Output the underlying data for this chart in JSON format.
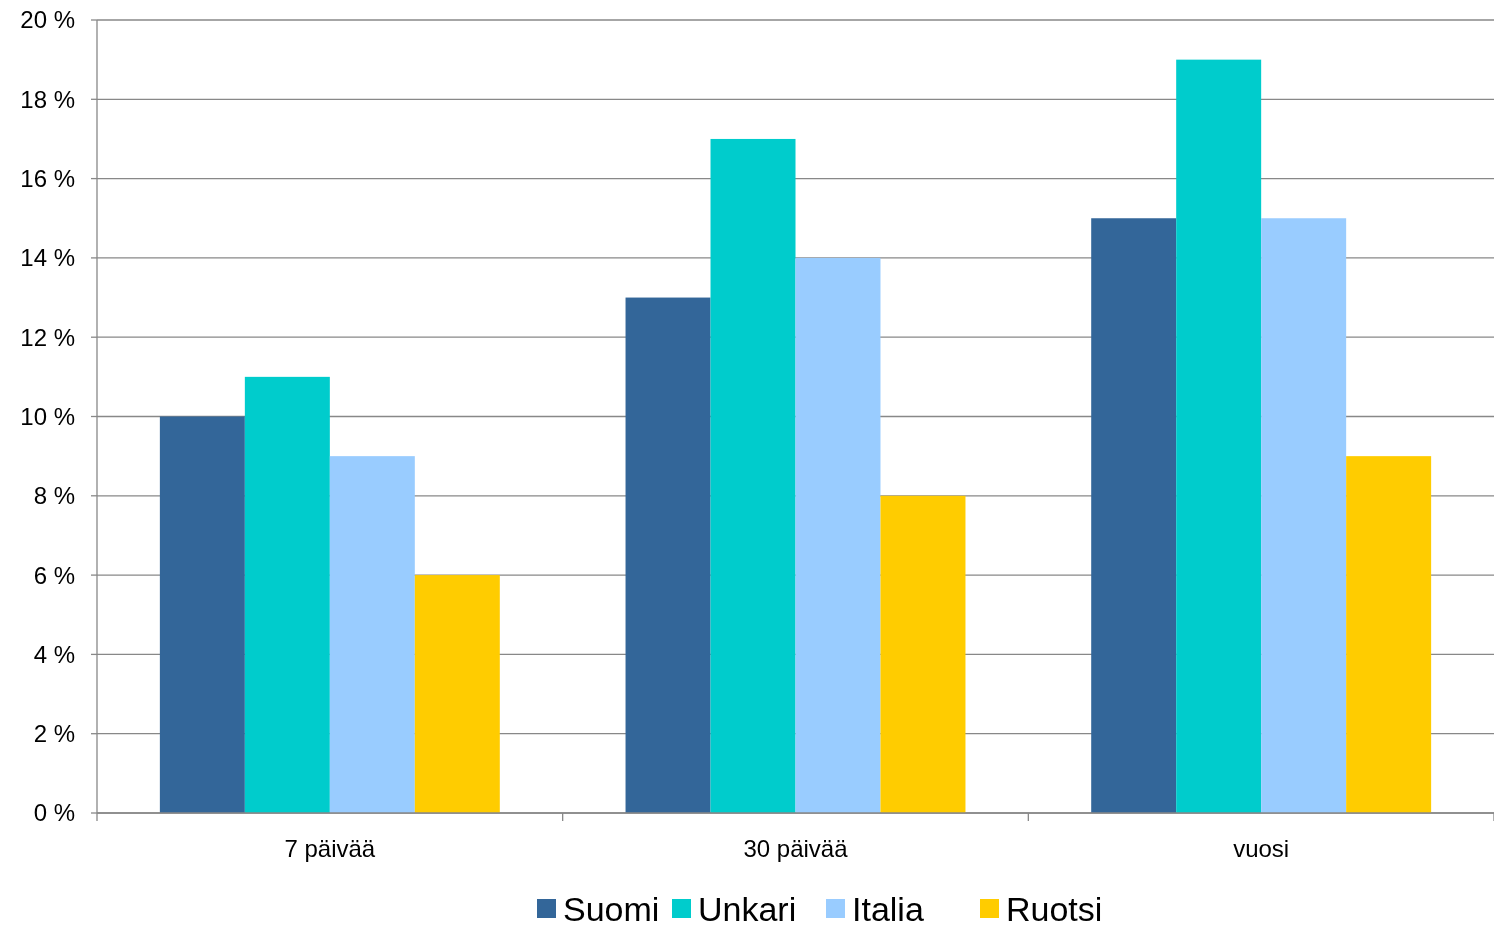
{
  "chart_data": {
    "type": "bar",
    "categories": [
      "7 päivää",
      "30 päivää",
      "vuosi"
    ],
    "series": [
      {
        "name": "Suomi",
        "color": "#336699",
        "values": [
          10,
          13,
          15
        ]
      },
      {
        "name": "Unkari",
        "color": "#00cccc",
        "values": [
          11,
          17,
          19
        ]
      },
      {
        "name": "Italia",
        "color": "#99ccff",
        "values": [
          9,
          14,
          15
        ]
      },
      {
        "name": "Ruotsi",
        "color": "#ffcc00",
        "values": [
          6,
          8,
          9
        ]
      }
    ],
    "ylim": [
      0,
      20
    ],
    "yticks": [
      {
        "value": 0,
        "label": "0 %"
      },
      {
        "value": 2,
        "label": "2 %"
      },
      {
        "value": 4,
        "label": "4 %"
      },
      {
        "value": 6,
        "label": "6 %"
      },
      {
        "value": 8,
        "label": "8 %"
      },
      {
        "value": 10,
        "label": "10 %"
      },
      {
        "value": 12,
        "label": "12 %"
      },
      {
        "value": 14,
        "label": "14 %"
      },
      {
        "value": 16,
        "label": "16 %"
      },
      {
        "value": 18,
        "label": "18 %"
      },
      {
        "value": 20,
        "label": "20 %"
      }
    ],
    "grid": "y",
    "legend": "bottom"
  }
}
